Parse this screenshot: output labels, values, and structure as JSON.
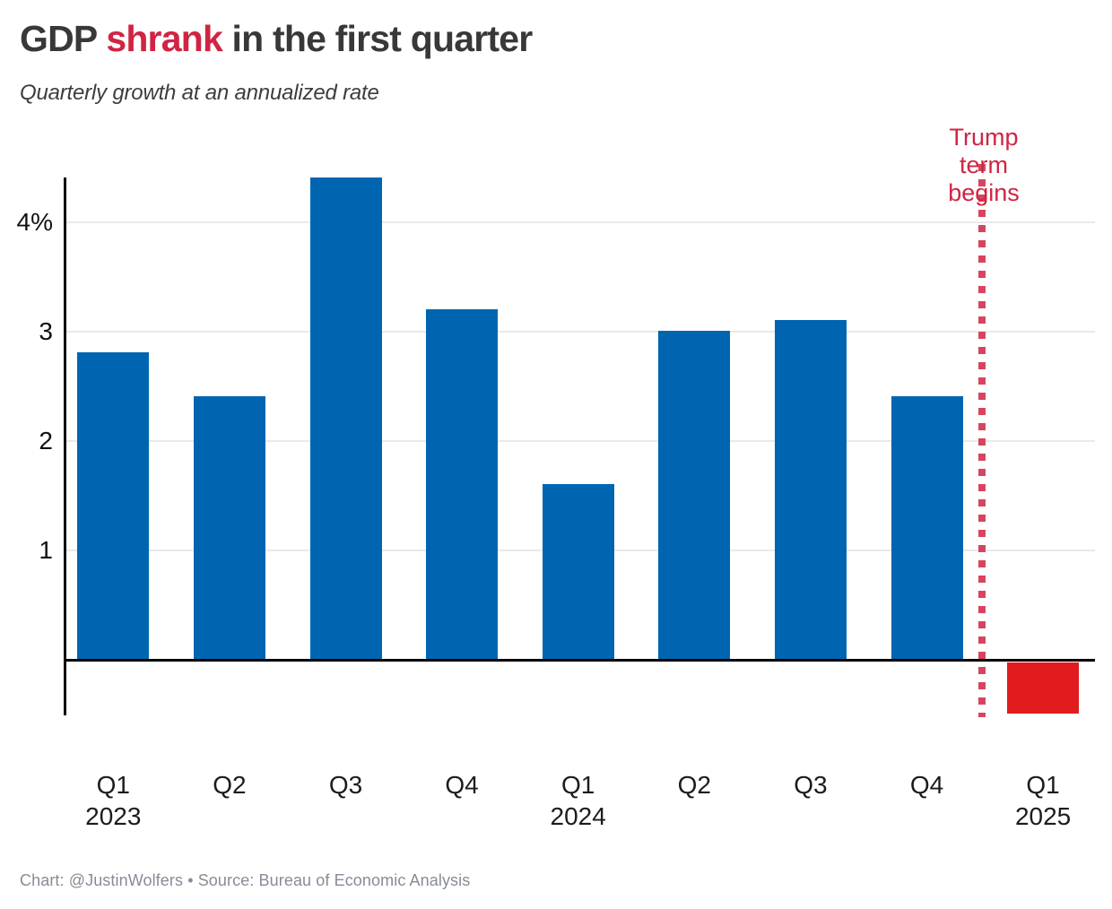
{
  "header": {
    "title_prefix": "GDP ",
    "title_highlight": "shrank",
    "title_suffix": " in the first quarter",
    "subtitle": "Quarterly growth at an annualized rate"
  },
  "chart_data": {
    "type": "bar",
    "title": "GDP shrank in the first quarter",
    "subtitle": "Quarterly growth at an annualized rate",
    "categories": [
      "Q1 2023",
      "Q2 2023",
      "Q3 2023",
      "Q4 2023",
      "Q1 2024",
      "Q2 2024",
      "Q3 2024",
      "Q4 2024",
      "Q1 2025"
    ],
    "x_tick_lines": [
      [
        "Q1",
        "2023"
      ],
      [
        "Q2"
      ],
      [
        "Q3"
      ],
      [
        "Q4"
      ],
      [
        "Q1",
        "2024"
      ],
      [
        "Q2"
      ],
      [
        "Q3"
      ],
      [
        "Q4"
      ],
      [
        "Q1",
        "2025"
      ]
    ],
    "values": [
      2.8,
      2.4,
      4.4,
      3.2,
      1.6,
      3.0,
      3.1,
      2.4,
      -0.5
    ],
    "xlabel": "",
    "ylabel": "",
    "y_ticks": [
      4,
      3,
      2,
      1
    ],
    "y_tick_labels": [
      "4%",
      "3",
      "2",
      "1"
    ],
    "ylim": [
      -0.5,
      4.4
    ],
    "grid": true,
    "legend": false,
    "annotation": {
      "lines": [
        "Trump",
        "term",
        "begins"
      ],
      "position": "between Q4 2024 and Q1 2025",
      "marker": "vertical dotted line"
    },
    "colors": {
      "bar_positive": "#0065b1",
      "bar_negative": "#e11b1e",
      "annotation_text": "#d02442",
      "annotation_dots": "#d4465f",
      "title_highlight": "#d02442"
    }
  },
  "footer": {
    "credit": "Chart: @JustinWolfers • Source: Bureau of Economic Analysis"
  }
}
